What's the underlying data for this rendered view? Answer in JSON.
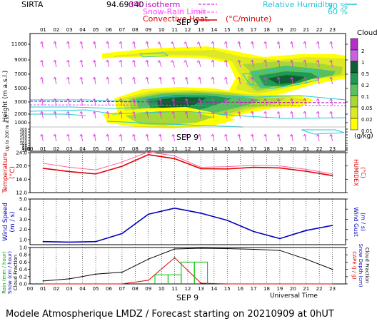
{
  "station": "SIRTA",
  "coords": "94.69340",
  "legend": {
    "isotherm": "0°C isotherm",
    "snow_rain": "Snow-Rain Limit",
    "convective": "Convective Heat.",
    "convective_unit": "(°C/minute)",
    "rh_label": "Relative Humidity",
    "rh90": "90 %",
    "rh60": "60 %"
  },
  "date_label": "SEP  9",
  "footer": "Modele Atmospherique LMDZ / Forecast starting on 20210909 at 0hUT",
  "xaxis_label": "Universal Time",
  "chart_data": [
    {
      "type": "heatmap",
      "name": "clouds",
      "hours": [
        "01",
        "02",
        "03",
        "04",
        "05",
        "06",
        "07",
        "08",
        "09",
        "10",
        "11",
        "12",
        "13",
        "14",
        "15",
        "16",
        "17",
        "18",
        "19",
        "20",
        "21",
        "22",
        "23"
      ],
      "ylabel": "Height  (m a.s.l.)",
      "ylabel2": "Up to 200 m a.s.l.",
      "yticks": [
        "11000",
        "9000",
        "7000",
        "5000",
        "3000",
        "2000",
        "1000",
        "200",
        "180",
        "160",
        "140",
        "120",
        "100",
        "80",
        "60",
        "40",
        "20"
      ],
      "colorbar_title": "Clouds",
      "colorbar_levels": [
        "2",
        "1",
        "0.5",
        "0.2",
        "0.1",
        "0.05",
        "0.02",
        "0.01"
      ],
      "colorbar_unit": "(g/kg)",
      "colors": [
        "#b030c8",
        "#c860e0",
        "#0e6030",
        "#1f9a50",
        "#58c060",
        "#a8d838",
        "#dce828",
        "#ffff00"
      ]
    },
    {
      "type": "line",
      "name": "temperature",
      "ylabel": "Temperature",
      "ylabel_unit": "(°C)",
      "ylabel2": "HUMIDEX",
      "ylabel2_unit": "(°C)",
      "yticks": [
        "24.0",
        "20.0",
        "16.0",
        "12.0"
      ],
      "ylim": [
        12,
        24
      ],
      "x": [
        1,
        3,
        5,
        7,
        9,
        11,
        13,
        15,
        17,
        19,
        21,
        23
      ],
      "series": [
        {
          "name": "temperature",
          "color": "#e00000",
          "values": [
            19.3,
            18.3,
            17.6,
            19.9,
            23.4,
            22.2,
            19.2,
            19.1,
            19.6,
            19.4,
            18.4,
            17.1
          ]
        },
        {
          "name": "humidex",
          "color": "#ff60a0",
          "values": [
            20.8,
            19.6,
            18.8,
            21.2,
            24.2,
            23.0,
            19.6,
            19.8,
            20.2,
            20.0,
            19.0,
            17.6
          ]
        }
      ]
    },
    {
      "type": "line",
      "name": "wind",
      "ylabel": "Wind Speed",
      "ylabel_unit": "(m / s)",
      "ylabel2": "Wind Gust",
      "ylabel2_unit": "(m / s)",
      "yticks": [
        "5.0",
        "4.0",
        "3.0",
        "2.0",
        "1.0"
      ],
      "ylim": [
        0.5,
        5
      ],
      "x": [
        1,
        3,
        5,
        7,
        9,
        11,
        13,
        15,
        17,
        19,
        21,
        23
      ],
      "series": [
        {
          "name": "wind speed",
          "color": "#0000c0",
          "values": [
            0.8,
            0.75,
            0.8,
            1.6,
            3.5,
            4.1,
            3.6,
            2.9,
            1.8,
            1.1,
            1.9,
            2.4
          ]
        }
      ]
    },
    {
      "type": "line",
      "name": "precipitation",
      "ylabel_left": [
        "Rain (mm / hour)",
        "Snow (cm / hour)",
        "Cloud Fraction"
      ],
      "ylabel_right": [
        "CAPE (J / g)",
        "Snow Depth (cm)",
        "Cloud Fraction"
      ],
      "yticks": [
        "1.0",
        "0.8",
        "0.6",
        "0.4",
        "0.2",
        "0.0"
      ],
      "ylim": [
        0,
        1
      ],
      "x": [
        1,
        3,
        5,
        7,
        9,
        11,
        13,
        15,
        17,
        19,
        21,
        23
      ],
      "series": [
        {
          "name": "cloud fraction",
          "color": "#000000",
          "values": [
            0.08,
            0.14,
            0.27,
            0.32,
            0.68,
            0.96,
            0.98,
            0.97,
            0.95,
            0.92,
            0.68,
            0.4
          ]
        },
        {
          "name": "cape",
          "color": "#e00000",
          "x": [
            1,
            3,
            5,
            7,
            9,
            11,
            13,
            15,
            17,
            19,
            21,
            23
          ],
          "values": [
            0,
            0,
            0,
            0,
            0.1,
            0.72,
            0.02,
            0,
            0,
            0,
            0,
            0
          ]
        },
        {
          "name": "rain",
          "color": "#00c000",
          "bars": [
            {
              "from": 10,
              "to": 11,
              "value": 0.25
            },
            {
              "from": 11,
              "to": 12,
              "value": 0.25
            },
            {
              "from": 12,
              "to": 13,
              "value": 0.6
            },
            {
              "from": 13,
              "to": 14,
              "value": 0.6
            }
          ]
        }
      ]
    }
  ]
}
